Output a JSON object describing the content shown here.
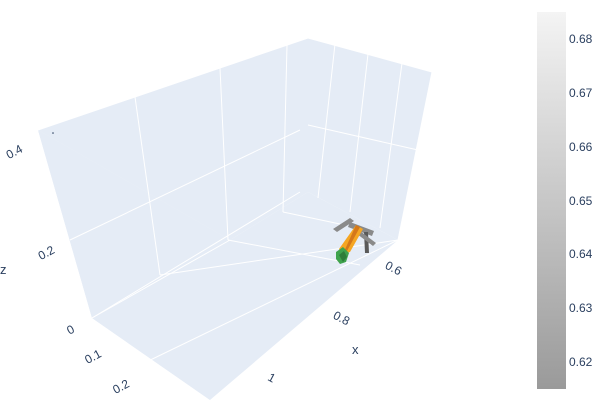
{
  "chart_data": {
    "type": "scatter3d",
    "title": "",
    "scene": {
      "background": "#e5ecf6",
      "grid": true,
      "gridcolor": "#ffffff",
      "xaxis": {
        "title": "x",
        "ticks": [
          "0.6",
          "0.8",
          "1"
        ]
      },
      "yaxis": {
        "title": "",
        "ticks": [
          "0.1",
          "0.2"
        ]
      },
      "zaxis": {
        "title": "z",
        "ticks": [
          "0",
          "0.2",
          "0.4"
        ]
      }
    },
    "colorbar": {
      "ticks": [
        "0.68",
        "0.67",
        "0.66",
        "0.65",
        "0.64",
        "0.63",
        "0.62"
      ],
      "colors": {
        "top": "#f4f4f4",
        "bottom": "#9a9a9a"
      }
    },
    "object_colors": {
      "orange": "#f5a623",
      "dark_orange": "#d4781a",
      "green": "#3fa34d",
      "gray": "#8a8a8a",
      "dark_gray": "#5a5a5a"
    }
  }
}
